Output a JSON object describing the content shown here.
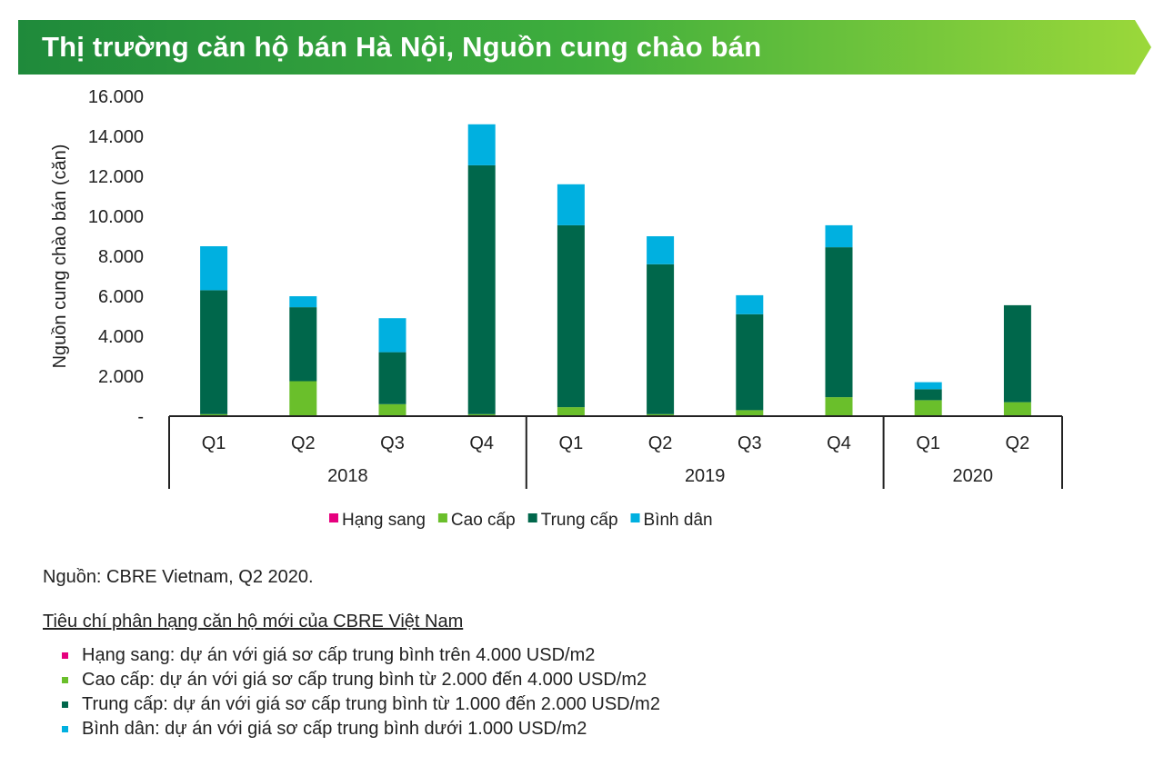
{
  "header": {
    "title": "Thị trường căn hộ bán Hà Nội, Nguồn cung chào bán"
  },
  "chart_data": {
    "type": "bar",
    "stacked": true,
    "title": "Thị trường căn hộ bán Hà Nội, Nguồn cung chào bán",
    "ylabel": "Nguồn cung chào bán (căn)",
    "xlabel": "",
    "ylim": [
      0,
      16000
    ],
    "yticks": [
      0,
      2000,
      4000,
      6000,
      8000,
      10000,
      12000,
      14000,
      16000
    ],
    "ytick_labels": [
      "-",
      "2.000",
      "4.000",
      "6.000",
      "8.000",
      "10.000",
      "12.000",
      "14.000",
      "16.000"
    ],
    "categories": [
      "Q1",
      "Q2",
      "Q3",
      "Q4",
      "Q1",
      "Q2",
      "Q3",
      "Q4",
      "Q1",
      "Q2"
    ],
    "groups": [
      {
        "label": "2018",
        "count": 4
      },
      {
        "label": "2019",
        "count": 4
      },
      {
        "label": "2020",
        "count": 2
      }
    ],
    "series": [
      {
        "name": "Hạng sang",
        "color": "#e6007e",
        "values": [
          0,
          0,
          0,
          0,
          0,
          0,
          0,
          0,
          0,
          0
        ]
      },
      {
        "name": "Cao cấp",
        "color": "#6abf2b",
        "values": [
          100,
          1750,
          600,
          100,
          450,
          100,
          300,
          950,
          800,
          700
        ]
      },
      {
        "name": "Trung cấp",
        "color": "#00674b",
        "values": [
          6200,
          3700,
          2600,
          12450,
          9100,
          7500,
          4800,
          7500,
          550,
          4850
        ]
      },
      {
        "name": "Bình dân",
        "color": "#00b0e0",
        "values": [
          2200,
          550,
          1700,
          2050,
          2050,
          1400,
          950,
          1100,
          350,
          0
        ]
      }
    ],
    "legend_position": "bottom",
    "grid": false
  },
  "footer": {
    "source": "Nguồn: CBRE Vietnam, Q2 2020.",
    "criteria_title": "Tiêu chí phân hạng căn hộ mới của CBRE Việt Nam",
    "criteria": [
      {
        "text": "Hạng sang: dự án với giá sơ cấp trung bình trên 4.000 USD/m2",
        "color": "#e6007e"
      },
      {
        "text": "Cao cấp: dự án với giá sơ cấp trung bình từ 2.000 đến 4.000 USD/m2",
        "color": "#6abf2b"
      },
      {
        "text": "Trung cấp: dự án với giá sơ cấp trung bình từ 1.000 đến 2.000 USD/m2",
        "color": "#00674b"
      },
      {
        "text": "Bình dân: dự án với giá sơ cấp trung bình dưới 1.000 USD/m2",
        "color": "#00b0e0"
      }
    ]
  }
}
